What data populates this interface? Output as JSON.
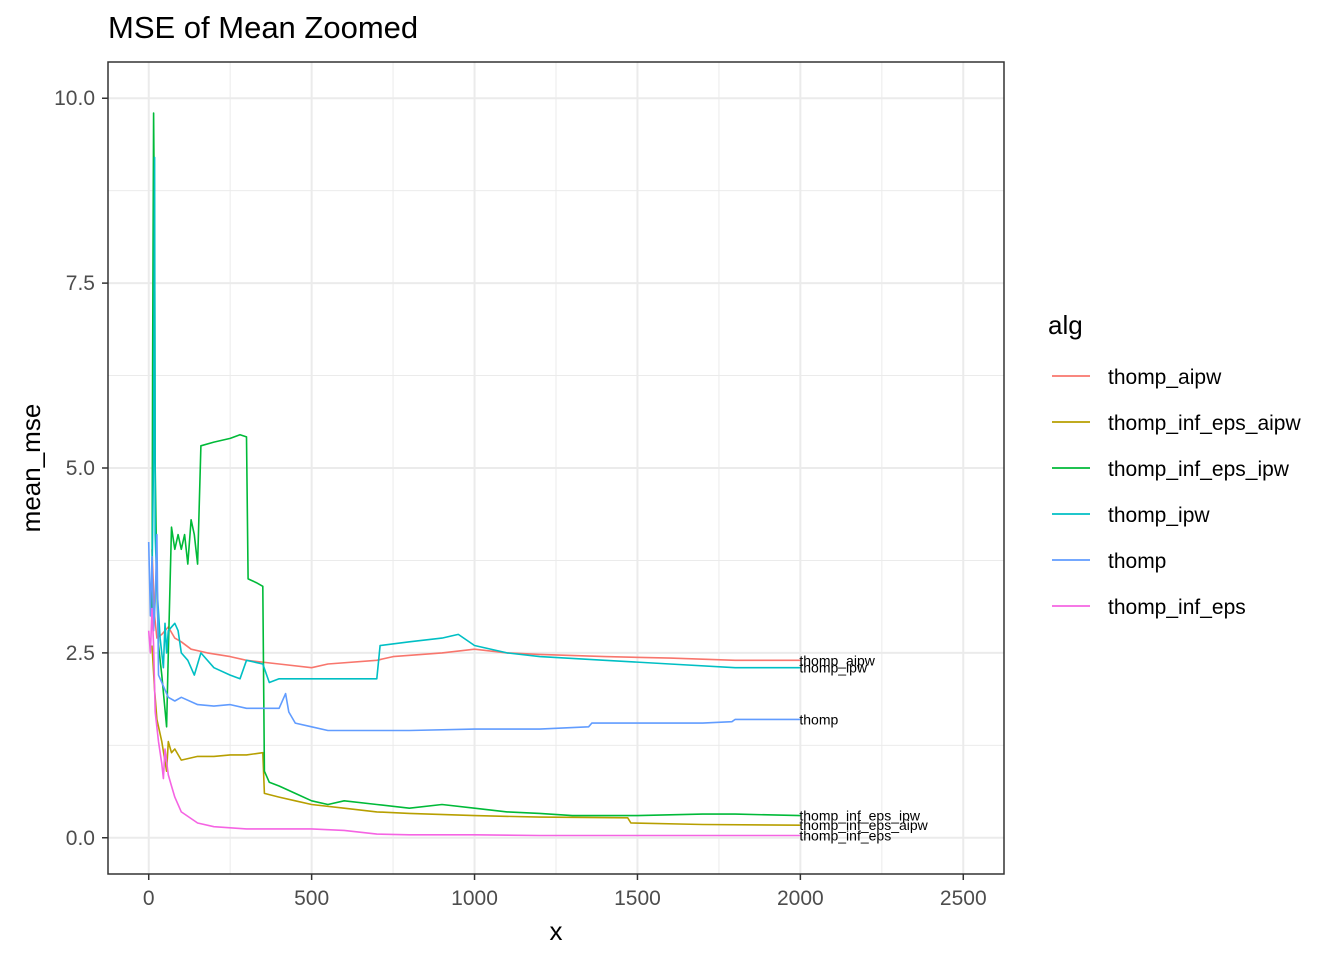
{
  "chart_data": {
    "type": "line",
    "title": "MSE of Mean Zoomed",
    "xlabel": "x",
    "ylabel": "mean_mse",
    "xlim": [
      -125,
      2625
    ],
    "ylim": [
      -0.49,
      10.49
    ],
    "x_ticks": [
      0,
      500,
      1000,
      1500,
      2000,
      2500
    ],
    "x_tick_labels": [
      "0",
      "500",
      "1000",
      "1500",
      "2000",
      "2500"
    ],
    "y_ticks": [
      0,
      2.5,
      5,
      7.5,
      10
    ],
    "y_tick_labels": [
      "0.0",
      "2.5",
      "5.0",
      "7.5",
      "10.0"
    ],
    "grid": true,
    "legend": {
      "title": "alg",
      "position": "right"
    },
    "series": [
      {
        "name": "thomp_aipw",
        "color": "#F8766D",
        "end_label": "thomp_aipw",
        "points": [
          [
            10,
            3.9
          ],
          [
            18,
            3.0
          ],
          [
            25,
            2.7
          ],
          [
            40,
            2.75
          ],
          [
            60,
            2.85
          ],
          [
            80,
            2.7
          ],
          [
            100,
            2.65
          ],
          [
            130,
            2.55
          ],
          [
            180,
            2.5
          ],
          [
            250,
            2.45
          ],
          [
            300,
            2.4
          ],
          [
            400,
            2.35
          ],
          [
            500,
            2.3
          ],
          [
            550,
            2.35
          ],
          [
            700,
            2.4
          ],
          [
            750,
            2.45
          ],
          [
            900,
            2.5
          ],
          [
            1000,
            2.55
          ],
          [
            1100,
            2.5
          ],
          [
            1200,
            2.48
          ],
          [
            1400,
            2.45
          ],
          [
            1600,
            2.43
          ],
          [
            1800,
            2.4
          ],
          [
            2000,
            2.4
          ]
        ]
      },
      {
        "name": "thomp_inf_eps_aipw",
        "color": "#B79F00",
        "end_label": "thomp_inf_eps_aipw",
        "points": [
          [
            10,
            2.6
          ],
          [
            18,
            2.0
          ],
          [
            25,
            1.6
          ],
          [
            40,
            1.3
          ],
          [
            55,
            0.9
          ],
          [
            60,
            1.3
          ],
          [
            70,
            1.15
          ],
          [
            80,
            1.2
          ],
          [
            100,
            1.05
          ],
          [
            150,
            1.1
          ],
          [
            200,
            1.1
          ],
          [
            250,
            1.12
          ],
          [
            300,
            1.12
          ],
          [
            350,
            1.15
          ],
          [
            355,
            0.6
          ],
          [
            400,
            0.55
          ],
          [
            450,
            0.5
          ],
          [
            500,
            0.45
          ],
          [
            600,
            0.4
          ],
          [
            700,
            0.35
          ],
          [
            800,
            0.33
          ],
          [
            1000,
            0.3
          ],
          [
            1200,
            0.28
          ],
          [
            1470,
            0.27
          ],
          [
            1480,
            0.2
          ],
          [
            1700,
            0.18
          ],
          [
            2000,
            0.17
          ]
        ]
      },
      {
        "name": "thomp_inf_eps_ipw",
        "color": "#00BA38",
        "end_label": "thomp_inf_eps_ipw",
        "points": [
          [
            10,
            3.0
          ],
          [
            12,
            6.3
          ],
          [
            15,
            9.8
          ],
          [
            18,
            8.0
          ],
          [
            20,
            5.0
          ],
          [
            25,
            3.4
          ],
          [
            30,
            2.6
          ],
          [
            40,
            2.2
          ],
          [
            55,
            1.5
          ],
          [
            60,
            2.5
          ],
          [
            70,
            4.2
          ],
          [
            80,
            3.9
          ],
          [
            90,
            4.1
          ],
          [
            100,
            3.9
          ],
          [
            110,
            4.1
          ],
          [
            120,
            3.7
          ],
          [
            130,
            4.3
          ],
          [
            140,
            4.1
          ],
          [
            150,
            3.7
          ],
          [
            160,
            5.3
          ],
          [
            200,
            5.35
          ],
          [
            250,
            5.4
          ],
          [
            280,
            5.45
          ],
          [
            300,
            5.42
          ],
          [
            305,
            3.5
          ],
          [
            330,
            3.45
          ],
          [
            350,
            3.4
          ],
          [
            355,
            0.9
          ],
          [
            370,
            0.75
          ],
          [
            400,
            0.7
          ],
          [
            450,
            0.6
          ],
          [
            500,
            0.5
          ],
          [
            550,
            0.45
          ],
          [
            600,
            0.5
          ],
          [
            700,
            0.45
          ],
          [
            800,
            0.4
          ],
          [
            900,
            0.45
          ],
          [
            1000,
            0.4
          ],
          [
            1100,
            0.35
          ],
          [
            1200,
            0.33
          ],
          [
            1300,
            0.3
          ],
          [
            1500,
            0.3
          ],
          [
            1700,
            0.32
          ],
          [
            1800,
            0.32
          ],
          [
            2000,
            0.3
          ]
        ]
      },
      {
        "name": "thomp_ipw",
        "color": "#00BFC4",
        "end_label": "thomp_ipw",
        "points": [
          [
            10,
            3.5
          ],
          [
            15,
            5.2
          ],
          [
            18,
            9.2
          ],
          [
            20,
            4.1
          ],
          [
            25,
            3.4
          ],
          [
            35,
            2.7
          ],
          [
            45,
            2.3
          ],
          [
            50,
            2.9
          ],
          [
            55,
            2.5
          ],
          [
            60,
            2.8
          ],
          [
            80,
            2.9
          ],
          [
            90,
            2.8
          ],
          [
            100,
            2.5
          ],
          [
            120,
            2.4
          ],
          [
            140,
            2.2
          ],
          [
            160,
            2.5
          ],
          [
            200,
            2.3
          ],
          [
            250,
            2.2
          ],
          [
            280,
            2.15
          ],
          [
            300,
            2.4
          ],
          [
            350,
            2.35
          ],
          [
            370,
            2.1
          ],
          [
            400,
            2.15
          ],
          [
            500,
            2.15
          ],
          [
            600,
            2.15
          ],
          [
            700,
            2.15
          ],
          [
            710,
            2.6
          ],
          [
            800,
            2.65
          ],
          [
            900,
            2.7
          ],
          [
            950,
            2.75
          ],
          [
            1000,
            2.6
          ],
          [
            1100,
            2.5
          ],
          [
            1200,
            2.45
          ],
          [
            1400,
            2.4
          ],
          [
            1600,
            2.35
          ],
          [
            1800,
            2.3
          ],
          [
            2000,
            2.3
          ]
        ]
      },
      {
        "name": "thomp",
        "color": "#619CFF",
        "end_label": "thomp",
        "points": [
          [
            0,
            4.0
          ],
          [
            5,
            3.0
          ],
          [
            10,
            3.8
          ],
          [
            15,
            2.8
          ],
          [
            20,
            3.2
          ],
          [
            25,
            4.1
          ],
          [
            30,
            2.2
          ],
          [
            40,
            2.1
          ],
          [
            50,
            2.0
          ],
          [
            60,
            1.9
          ],
          [
            80,
            1.85
          ],
          [
            100,
            1.9
          ],
          [
            150,
            1.8
          ],
          [
            200,
            1.78
          ],
          [
            250,
            1.8
          ],
          [
            300,
            1.75
          ],
          [
            350,
            1.75
          ],
          [
            400,
            1.75
          ],
          [
            420,
            1.95
          ],
          [
            430,
            1.7
          ],
          [
            450,
            1.55
          ],
          [
            500,
            1.5
          ],
          [
            550,
            1.45
          ],
          [
            700,
            1.45
          ],
          [
            800,
            1.45
          ],
          [
            1000,
            1.47
          ],
          [
            1200,
            1.47
          ],
          [
            1350,
            1.5
          ],
          [
            1360,
            1.55
          ],
          [
            1500,
            1.55
          ],
          [
            1700,
            1.55
          ],
          [
            1790,
            1.57
          ],
          [
            1800,
            1.6
          ],
          [
            2000,
            1.6
          ]
        ]
      },
      {
        "name": "thomp_inf_eps",
        "color": "#F564E3",
        "end_label": "thomp_inf_eps",
        "points": [
          [
            0,
            2.8
          ],
          [
            5,
            2.5
          ],
          [
            10,
            3.1
          ],
          [
            15,
            2.6
          ],
          [
            20,
            1.7
          ],
          [
            30,
            1.3
          ],
          [
            40,
            1.0
          ],
          [
            45,
            0.8
          ],
          [
            50,
            1.2
          ],
          [
            60,
            0.85
          ],
          [
            70,
            0.7
          ],
          [
            80,
            0.55
          ],
          [
            100,
            0.35
          ],
          [
            150,
            0.2
          ],
          [
            200,
            0.15
          ],
          [
            300,
            0.12
          ],
          [
            400,
            0.12
          ],
          [
            500,
            0.12
          ],
          [
            600,
            0.1
          ],
          [
            700,
            0.05
          ],
          [
            800,
            0.04
          ],
          [
            1000,
            0.04
          ],
          [
            1200,
            0.03
          ],
          [
            1500,
            0.03
          ],
          [
            2000,
            0.03
          ]
        ]
      }
    ]
  }
}
